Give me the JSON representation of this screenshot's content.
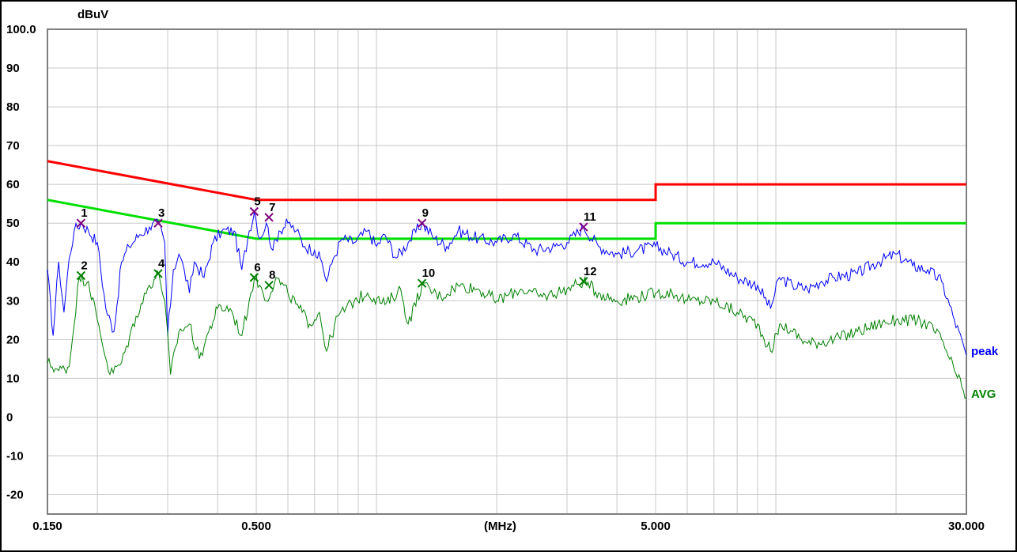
{
  "chart_data": {
    "type": "line",
    "title": "",
    "ylabel": "dBuV",
    "xlabel": "(MHz)",
    "x_scale": "log",
    "xlim": [
      0.15,
      30
    ],
    "ylim": [
      -25,
      100
    ],
    "grid": true,
    "y_ticks": [
      {
        "v": 100,
        "label": "100.0"
      },
      {
        "v": 90,
        "label": "90"
      },
      {
        "v": 80,
        "label": "80"
      },
      {
        "v": 70,
        "label": "70"
      },
      {
        "v": 60,
        "label": "60"
      },
      {
        "v": 50,
        "label": "50"
      },
      {
        "v": 40,
        "label": "40"
      },
      {
        "v": 30,
        "label": "30"
      },
      {
        "v": 20,
        "label": "20"
      },
      {
        "v": 10,
        "label": "10"
      },
      {
        "v": 0,
        "label": "0"
      },
      {
        "v": -10,
        "label": "-10"
      },
      {
        "v": -20,
        "label": "-20"
      }
    ],
    "x_ticks": [
      {
        "v": 0.15,
        "label": "0.150"
      },
      {
        "v": 0.5,
        "label": "0.500"
      },
      {
        "v": 5,
        "label": "5.000"
      },
      {
        "v": 30,
        "label": "30.000"
      }
    ],
    "limit_lines": [
      {
        "color": "#ff0000",
        "points": [
          [
            0.15,
            66
          ],
          [
            0.5,
            56
          ],
          [
            5,
            56
          ],
          [
            5,
            60
          ],
          [
            30,
            60
          ]
        ]
      },
      {
        "color": "#00e000",
        "points": [
          [
            0.15,
            56
          ],
          [
            0.5,
            46
          ],
          [
            5,
            46
          ],
          [
            5,
            50
          ],
          [
            30,
            50
          ]
        ]
      }
    ],
    "series": [
      {
        "name": "peak",
        "color": "#0000ff",
        "points": [
          [
            0.15,
            38
          ],
          [
            0.155,
            21
          ],
          [
            0.16,
            40
          ],
          [
            0.165,
            27
          ],
          [
            0.17,
            41
          ],
          [
            0.175,
            48
          ],
          [
            0.182,
            50
          ],
          [
            0.19,
            48
          ],
          [
            0.2,
            45
          ],
          [
            0.21,
            28
          ],
          [
            0.22,
            22
          ],
          [
            0.23,
            40
          ],
          [
            0.24,
            44
          ],
          [
            0.255,
            47
          ],
          [
            0.27,
            49
          ],
          [
            0.285,
            50
          ],
          [
            0.295,
            45
          ],
          [
            0.3,
            21
          ],
          [
            0.31,
            38
          ],
          [
            0.32,
            42
          ],
          [
            0.33,
            38
          ],
          [
            0.34,
            32
          ],
          [
            0.35,
            40
          ],
          [
            0.37,
            36
          ],
          [
            0.39,
            45
          ],
          [
            0.41,
            48
          ],
          [
            0.44,
            48
          ],
          [
            0.46,
            38
          ],
          [
            0.48,
            48
          ],
          [
            0.495,
            53
          ],
          [
            0.51,
            46
          ],
          [
            0.53,
            50
          ],
          [
            0.55,
            43
          ],
          [
            0.57,
            48
          ],
          [
            0.6,
            50
          ],
          [
            0.63,
            48
          ],
          [
            0.66,
            44
          ],
          [
            0.7,
            43
          ],
          [
            0.73,
            40
          ],
          [
            0.75,
            35
          ],
          [
            0.78,
            41
          ],
          [
            0.82,
            46
          ],
          [
            0.88,
            45
          ],
          [
            0.95,
            48
          ],
          [
            1.0,
            44
          ],
          [
            1.05,
            47
          ],
          [
            1.12,
            41
          ],
          [
            1.2,
            45
          ],
          [
            1.3,
            50
          ],
          [
            1.4,
            46
          ],
          [
            1.5,
            44
          ],
          [
            1.6,
            48
          ],
          [
            1.8,
            46
          ],
          [
            2.0,
            45
          ],
          [
            2.2,
            47
          ],
          [
            2.5,
            43
          ],
          [
            2.8,
            44
          ],
          [
            3.0,
            45
          ],
          [
            3.3,
            49
          ],
          [
            3.6,
            44
          ],
          [
            4.0,
            42
          ],
          [
            4.5,
            43
          ],
          [
            5.0,
            44
          ],
          [
            5.5,
            42
          ],
          [
            6.0,
            40
          ],
          [
            7.0,
            40
          ],
          [
            8.0,
            36
          ],
          [
            9.0,
            34
          ],
          [
            9.7,
            28
          ],
          [
            10.2,
            36
          ],
          [
            11.0,
            34
          ],
          [
            12.0,
            33
          ],
          [
            13.0,
            35
          ],
          [
            14.0,
            36
          ],
          [
            16.0,
            37
          ],
          [
            18.0,
            40
          ],
          [
            20.0,
            42
          ],
          [
            22.0,
            39
          ],
          [
            24.0,
            38
          ],
          [
            26.0,
            35
          ],
          [
            28.0,
            25
          ],
          [
            30.0,
            16
          ]
        ]
      },
      {
        "name": "AVG",
        "color": "#008000",
        "points": [
          [
            0.15,
            14
          ],
          [
            0.16,
            12
          ],
          [
            0.17,
            13
          ],
          [
            0.18,
            36
          ],
          [
            0.19,
            35
          ],
          [
            0.2,
            25
          ],
          [
            0.215,
            11
          ],
          [
            0.23,
            14
          ],
          [
            0.25,
            26
          ],
          [
            0.27,
            34
          ],
          [
            0.285,
            37
          ],
          [
            0.295,
            30
          ],
          [
            0.305,
            11
          ],
          [
            0.32,
            22
          ],
          [
            0.34,
            24
          ],
          [
            0.36,
            15
          ],
          [
            0.38,
            22
          ],
          [
            0.4,
            28
          ],
          [
            0.43,
            28
          ],
          [
            0.46,
            21
          ],
          [
            0.48,
            30
          ],
          [
            0.495,
            36
          ],
          [
            0.51,
            34
          ],
          [
            0.53,
            30
          ],
          [
            0.56,
            36
          ],
          [
            0.6,
            32
          ],
          [
            0.64,
            28
          ],
          [
            0.68,
            24
          ],
          [
            0.72,
            27
          ],
          [
            0.75,
            17
          ],
          [
            0.8,
            26
          ],
          [
            0.88,
            30
          ],
          [
            0.95,
            32
          ],
          [
            1.05,
            29
          ],
          [
            1.15,
            33
          ],
          [
            1.2,
            24
          ],
          [
            1.3,
            34
          ],
          [
            1.45,
            31
          ],
          [
            1.6,
            34
          ],
          [
            1.8,
            33
          ],
          [
            2.0,
            30
          ],
          [
            2.3,
            33
          ],
          [
            2.6,
            31
          ],
          [
            3.0,
            33
          ],
          [
            3.3,
            35
          ],
          [
            3.6,
            32
          ],
          [
            4.0,
            30
          ],
          [
            4.5,
            31
          ],
          [
            5.0,
            32
          ],
          [
            5.5,
            32
          ],
          [
            6.0,
            30
          ],
          [
            7.0,
            30
          ],
          [
            8.0,
            27
          ],
          [
            9.0,
            24
          ],
          [
            9.7,
            17
          ],
          [
            10.3,
            24
          ],
          [
            11.0,
            22
          ],
          [
            12.0,
            19
          ],
          [
            14.0,
            20
          ],
          [
            16.0,
            22
          ],
          [
            18.0,
            24
          ],
          [
            20.0,
            25
          ],
          [
            22.0,
            25
          ],
          [
            24.0,
            24
          ],
          [
            26.0,
            20
          ],
          [
            28.0,
            12
          ],
          [
            30.0,
            5
          ]
        ]
      }
    ],
    "markers": [
      {
        "label": "1",
        "x": 0.182,
        "y": 50,
        "color": "#800080"
      },
      {
        "label": "2",
        "x": 0.182,
        "y": 36.5,
        "color": "#008000"
      },
      {
        "label": "3",
        "x": 0.284,
        "y": 50,
        "color": "#800080"
      },
      {
        "label": "4",
        "x": 0.284,
        "y": 37,
        "color": "#008000"
      },
      {
        "label": "5",
        "x": 0.494,
        "y": 53,
        "color": "#800080"
      },
      {
        "label": "6",
        "x": 0.494,
        "y": 36,
        "color": "#008000"
      },
      {
        "label": "7",
        "x": 0.538,
        "y": 51.5,
        "color": "#800080"
      },
      {
        "label": "8",
        "x": 0.538,
        "y": 34,
        "color": "#008000"
      },
      {
        "label": "9",
        "x": 1.3,
        "y": 50,
        "color": "#800080"
      },
      {
        "label": "10",
        "x": 1.3,
        "y": 34.5,
        "color": "#008000"
      },
      {
        "label": "11",
        "x": 3.3,
        "y": 49,
        "color": "#800080"
      },
      {
        "label": "12",
        "x": 3.3,
        "y": 35,
        "color": "#008000"
      }
    ]
  }
}
